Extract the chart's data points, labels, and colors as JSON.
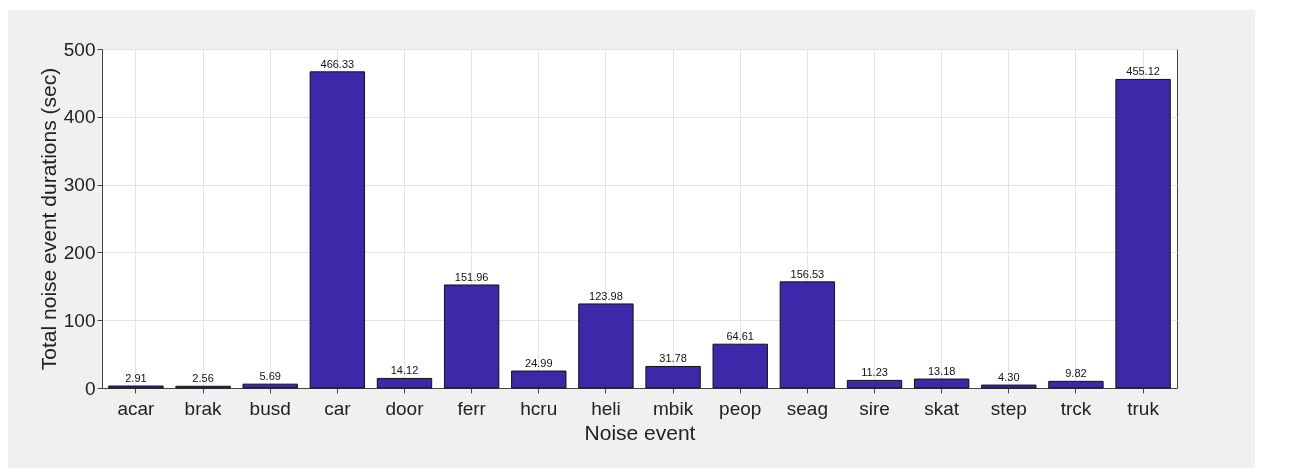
{
  "chart_data": {
    "type": "bar",
    "xlabel": "Noise event",
    "ylabel": "Total noise event durations (sec)",
    "categories": [
      "acar",
      "brak",
      "busd",
      "car",
      "door",
      "ferr",
      "hcru",
      "heli",
      "mbik",
      "peop",
      "seag",
      "sire",
      "skat",
      "step",
      "trck",
      "truk"
    ],
    "values": [
      2.91,
      2.56,
      5.69,
      466.33,
      14.12,
      151.96,
      24.99,
      123.98,
      31.78,
      64.61,
      156.53,
      11.23,
      13.18,
      4.3,
      9.82,
      455.12
    ],
    "color": "#3c28a8",
    "ylim": [
      0,
      500
    ],
    "yticks": [
      0,
      100,
      200,
      300,
      400,
      500
    ],
    "grid": true,
    "value_labels": [
      "2.91",
      "2.56",
      "5.69",
      "466.33",
      "14.12",
      "151.96",
      "24.99",
      "123.98",
      "31.78",
      "64.61",
      "156.53",
      "11.23",
      "13.18",
      "4.30",
      "9.82",
      "455.12"
    ]
  }
}
